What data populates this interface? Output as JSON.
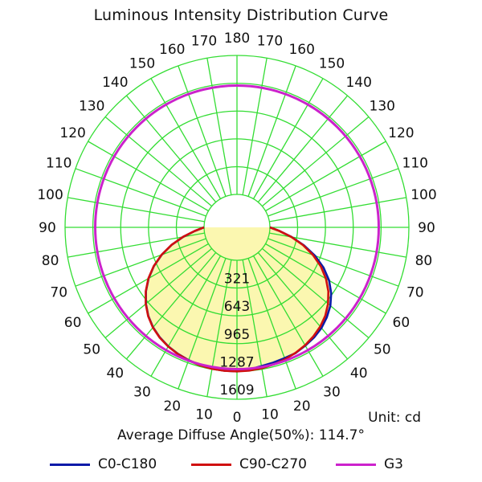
{
  "chart_data": {
    "type": "polar",
    "title": "Luminous Intensity Distribution Curve",
    "unit_label": "Unit: cd",
    "average_diffuse_angle": "Average Diffuse Angle(50%): 114.7°",
    "r_max": 1609,
    "radial_ticks": [
      321,
      643,
      965,
      1287,
      1609
    ],
    "angle_labels": {
      "left": [
        "0",
        "10",
        "20",
        "30",
        "40",
        "50",
        "60",
        "70",
        "80",
        "90",
        "100",
        "110",
        "120",
        "130",
        "140",
        "150",
        "160",
        "170",
        "180"
      ],
      "right": [
        "10",
        "20",
        "30",
        "40",
        "50",
        "60",
        "70",
        "80",
        "90",
        "100",
        "110",
        "120",
        "130",
        "140",
        "150",
        "160",
        "170"
      ]
    },
    "grid": true,
    "legend_placement": "bottom",
    "series": [
      {
        "name": "C0-C180",
        "color": "#0a1aa8",
        "angles": [
          0,
          5,
          10,
          15,
          20,
          25,
          30,
          35,
          40,
          45,
          50,
          55,
          60,
          65,
          70,
          75,
          80,
          85,
          90
        ],
        "left_values": [
          1287,
          1285,
          1280,
          1270,
          1255,
          1235,
          1210,
          1175,
          1130,
          1070,
          995,
          905,
          800,
          680,
          545,
          400,
          250,
          110,
          0
        ],
        "right_values": [
          1287,
          1270,
          1250,
          1240,
          1230,
          1225,
          1200,
          1175,
          1140,
          1090,
          1030,
          950,
          850,
          725,
          580,
          420,
          260,
          115,
          0
        ]
      },
      {
        "name": "C90-C270",
        "color": "#d01010",
        "angles": [
          0,
          5,
          10,
          15,
          20,
          25,
          30,
          35,
          40,
          45,
          50,
          55,
          60,
          65,
          70,
          75,
          80,
          85,
          90
        ],
        "left_values": [
          1287,
          1286,
          1282,
          1273,
          1258,
          1238,
          1212,
          1178,
          1133,
          1073,
          998,
          908,
          803,
          683,
          548,
          403,
          253,
          113,
          0
        ],
        "right_values": [
          1287,
          1283,
          1275,
          1262,
          1245,
          1222,
          1195,
          1160,
          1118,
          1065,
          995,
          910,
          808,
          690,
          555,
          410,
          258,
          115,
          0
        ]
      },
      {
        "name": "G3",
        "color": "#cc22cc",
        "constant_value": 1260
      }
    ]
  }
}
